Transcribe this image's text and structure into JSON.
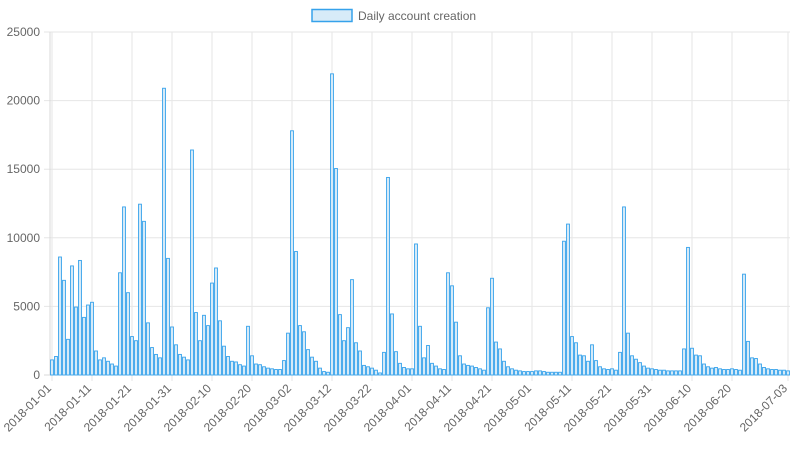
{
  "legend": {
    "label": "Daily account creation",
    "fill_color": "#d7ebf8",
    "border_color": "#36a2eb"
  },
  "chart_data": {
    "type": "bar",
    "legend_position": "top-center",
    "grid": true,
    "start_date": "2018-01-01",
    "ylim": [
      0,
      25000
    ],
    "y_ticks": [
      0,
      5000,
      10000,
      15000,
      20000,
      25000
    ],
    "y_tick_labels": [
      "0",
      "5000",
      "10000",
      "15000",
      "20000",
      "25000"
    ],
    "x_tick_labels": [
      "2018-01-01",
      "2018-01-11",
      "2018-01-21",
      "2018-01-31",
      "2018-02-10",
      "2018-02-20",
      "2018-03-02",
      "2018-03-12",
      "2018-03-22",
      "2018-04-01",
      "2018-04-11",
      "2018-04-21",
      "2018-05-01",
      "2018-05-11",
      "2018-05-21",
      "2018-05-31",
      "2018-06-10",
      "2018-06-20",
      "2018-07-03"
    ],
    "series": [
      {
        "name": "Daily account creation",
        "values": [
          1100,
          1350,
          8600,
          6900,
          2600,
          7950,
          4950,
          8350,
          4200,
          5100,
          5300,
          1750,
          1100,
          1250,
          1000,
          800,
          650,
          7450,
          12250,
          6000,
          2800,
          2500,
          12450,
          11200,
          3800,
          2000,
          1500,
          1250,
          20900,
          8500,
          3500,
          2200,
          1500,
          1300,
          1100,
          16400,
          4550,
          2500,
          4350,
          3600,
          6700,
          7800,
          3950,
          2100,
          1350,
          1000,
          950,
          750,
          650,
          3550,
          1400,
          800,
          750,
          600,
          500,
          450,
          400,
          400,
          1050,
          3050,
          17800,
          9000,
          3600,
          3150,
          1850,
          1300,
          1000,
          500,
          250,
          200,
          21950,
          15050,
          4400,
          2500,
          3450,
          6950,
          2350,
          1750,
          700,
          600,
          500,
          350,
          150,
          1650,
          14400,
          4450,
          1700,
          850,
          550,
          450,
          450,
          9550,
          3550,
          1250,
          2150,
          850,
          650,
          450,
          400,
          7450,
          6500,
          3850,
          1400,
          800,
          700,
          650,
          550,
          450,
          350,
          4900,
          7050,
          2400,
          1900,
          1000,
          600,
          450,
          350,
          300,
          250,
          250,
          250,
          300,
          300,
          250,
          200,
          200,
          200,
          200,
          9750,
          11000,
          2800,
          2350,
          1450,
          1400,
          1000,
          2200,
          1050,
          600,
          450,
          400,
          450,
          350,
          1650,
          12250,
          3050,
          1400,
          1150,
          900,
          650,
          500,
          450,
          400,
          350,
          350,
          300,
          300,
          300,
          300,
          1900,
          9300,
          1950,
          1450,
          1400,
          800,
          600,
          500,
          550,
          450,
          400,
          400,
          450,
          400,
          350,
          7350,
          2450,
          1250,
          1200,
          800,
          550,
          450,
          400,
          400,
          350,
          350,
          300
        ]
      }
    ]
  }
}
